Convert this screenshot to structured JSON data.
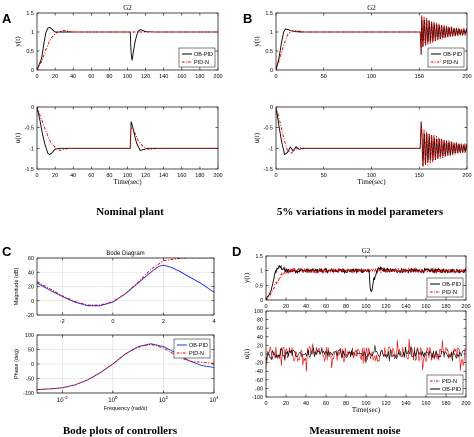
{
  "panels": {
    "A": {
      "label": "A",
      "caption": "Nominal plant"
    },
    "B": {
      "label": "B",
      "caption": "5% variations in model parameters"
    },
    "C": {
      "label": "C",
      "caption": "Bode plots of controllers"
    },
    "D": {
      "label": "D",
      "caption": "Measurement noise"
    }
  },
  "colors": {
    "ob_pid": "#000000",
    "pid_n": "#e00000",
    "ob_pid_bode": "#2233dd"
  },
  "chart_data": [
    {
      "id": "A-top",
      "type": "line",
      "title": "G2",
      "ylabel": "y(t)",
      "xlabel": "",
      "xlim": [
        0,
        200
      ],
      "ylim": [
        0,
        1.5
      ],
      "xticks": [
        0,
        20,
        40,
        60,
        80,
        100,
        120,
        140,
        160,
        180,
        200
      ],
      "yticks": [
        0,
        0.5,
        1,
        1.5
      ],
      "legend": "bottom-right",
      "series": [
        {
          "name": "OB-PID",
          "style": "solid",
          "x": [
            0,
            5,
            8,
            10,
            12,
            14,
            16,
            18,
            20,
            25,
            40,
            103,
            104,
            105,
            106,
            108,
            110,
            112,
            114,
            116,
            120,
            130,
            200
          ],
          "values": [
            0,
            0.3,
            0.75,
            1.0,
            1.1,
            1.12,
            1.09,
            1.04,
            1.0,
            1.0,
            1.0,
            1.0,
            0.45,
            0.25,
            0.4,
            0.7,
            0.9,
            1.02,
            1.06,
            1.05,
            1.01,
            1.0,
            1.0
          ]
        },
        {
          "name": "PID-N",
          "style": "dashdot",
          "x": [
            0,
            5,
            10,
            15,
            20,
            25,
            30,
            35,
            40,
            50,
            200
          ],
          "values": [
            0,
            0.22,
            0.55,
            0.82,
            0.95,
            1.02,
            1.04,
            1.02,
            1.0,
            1.0,
            1.0
          ]
        }
      ]
    },
    {
      "id": "A-bottom",
      "type": "line",
      "ylabel": "u(t)",
      "xlabel": "Time(sec)",
      "xlim": [
        0,
        200
      ],
      "ylim": [
        -1.5,
        0
      ],
      "xticks": [
        0,
        20,
        40,
        60,
        80,
        100,
        120,
        140,
        160,
        180,
        200
      ],
      "yticks": [
        -1.5,
        -1,
        -0.5,
        0
      ],
      "series": [
        {
          "name": "OB-PID",
          "style": "solid",
          "x": [
            0,
            3,
            6,
            9,
            12,
            14,
            16,
            18,
            20,
            25,
            40,
            103,
            104,
            106,
            108,
            110,
            114,
            118,
            122,
            200
          ],
          "values": [
            0,
            -0.3,
            -0.65,
            -0.92,
            -1.12,
            -1.15,
            -1.12,
            -1.07,
            -1.02,
            -1.0,
            -1.0,
            -1.0,
            -0.35,
            -0.5,
            -0.7,
            -0.87,
            -1.05,
            -1.03,
            -1.0,
            -1.0
          ]
        },
        {
          "name": "PID-N",
          "style": "dashdot",
          "x": [
            0,
            5,
            10,
            15,
            20,
            25,
            30,
            35,
            40,
            103,
            104,
            108,
            112,
            118,
            124,
            130,
            140,
            200
          ],
          "values": [
            0,
            -0.3,
            -0.6,
            -0.85,
            -0.98,
            -1.05,
            -1.03,
            -1.0,
            -1.0,
            -1.0,
            -0.5,
            -0.62,
            -0.82,
            -0.97,
            -1.03,
            -1.01,
            -1.0,
            -1.0
          ]
        }
      ]
    },
    {
      "id": "B-top",
      "type": "line",
      "title": "G2",
      "ylabel": "y(t)",
      "xlabel": "",
      "xlim": [
        0,
        200
      ],
      "ylim": [
        0,
        1.5
      ],
      "xticks": [
        0,
        50,
        100,
        150,
        200
      ],
      "yticks": [
        0,
        0.5,
        1,
        1.5
      ],
      "legend": "bottom-right",
      "osc_start": 152,
      "osc_end": 200,
      "osc_amp0": 0.45,
      "osc_decay": 0.04,
      "osc_period": 2.6,
      "series": [
        {
          "name": "OB-PID",
          "style": "solid",
          "x": [
            0,
            3,
            6,
            8,
            10,
            13,
            16,
            20,
            25,
            30,
            40,
            151,
            152,
            153,
            154
          ],
          "values": [
            0,
            0.3,
            0.75,
            1.0,
            1.08,
            1.06,
            1.03,
            1.01,
            1.0,
            1.0,
            1.0,
            1.0,
            0.4,
            0.2,
            0.5
          ]
        },
        {
          "name": "PID-N",
          "style": "dashdot",
          "x": [
            0,
            4,
            8,
            12,
            16,
            20,
            25,
            30,
            40,
            151,
            152,
            153,
            154
          ],
          "values": [
            0,
            0.3,
            0.65,
            0.92,
            1.03,
            1.04,
            1.02,
            1.0,
            1.0,
            1.0,
            0.45,
            0.25,
            0.55
          ]
        }
      ]
    },
    {
      "id": "B-bottom",
      "type": "line",
      "ylabel": "u(t)",
      "xlabel": "Time(sec)",
      "xlim": [
        0,
        200
      ],
      "ylim": [
        -1.5,
        0
      ],
      "xticks": [
        0,
        50,
        100,
        150,
        200
      ],
      "yticks": [
        -1.5,
        -1,
        -0.5,
        0
      ],
      "osc_start": 152,
      "osc_end": 200,
      "osc_amp0": 0.5,
      "osc_decay": 0.035,
      "osc_period": 2.6,
      "series": [
        {
          "name": "OB-PID",
          "style": "solid",
          "x": [
            0,
            3,
            6,
            9,
            12,
            15,
            18,
            21,
            24,
            30,
            40,
            151,
            152,
            153
          ],
          "values": [
            0,
            -0.45,
            -0.85,
            -1.15,
            -1.1,
            -0.97,
            -1.06,
            -0.96,
            -1.02,
            -1.0,
            -1.0,
            -1.0,
            -0.35,
            -0.6
          ]
        },
        {
          "name": "PID-N",
          "style": "dashdot",
          "x": [
            0,
            4,
            8,
            12,
            16,
            20,
            25,
            30,
            40,
            151,
            152,
            153
          ],
          "values": [
            0,
            -0.35,
            -0.75,
            -1.05,
            -1.12,
            -1.02,
            -0.98,
            -1.0,
            -1.0,
            -1.0,
            -0.4,
            -0.65
          ]
        }
      ]
    },
    {
      "id": "C-top",
      "type": "line",
      "title": "Bode Diagram",
      "ylabel": "Magnitude (dB)",
      "xlabel": "",
      "xscale": "log",
      "xlim": [
        -3,
        4
      ],
      "ylim": [
        -20,
        60
      ],
      "xticks": [
        -2,
        0,
        2,
        4
      ],
      "yticks": [
        -20,
        0,
        20,
        40,
        60
      ],
      "series": [
        {
          "name": "OB-PID",
          "style": "solid",
          "x": [
            -3,
            -2.5,
            -2,
            -1.5,
            -1,
            -0.5,
            0,
            0.5,
            1,
            1.5,
            1.8,
            2,
            2.3,
            2.6,
            3,
            3.5,
            4
          ],
          "values": [
            25,
            15,
            6,
            -2,
            -7,
            -7,
            -2,
            10,
            25,
            40,
            48,
            50,
            47,
            42,
            34,
            24,
            12
          ]
        },
        {
          "name": "PID-N",
          "style": "dashdot",
          "x": [
            -3,
            -2.5,
            -2,
            -1.5,
            -1,
            -0.5,
            0,
            0.5,
            1,
            1.5,
            2,
            2.5,
            3,
            4
          ],
          "values": [
            27,
            17,
            7,
            -1,
            -6,
            -6,
            -1,
            10,
            26,
            44,
            56,
            59,
            60,
            60
          ]
        }
      ]
    },
    {
      "id": "C-bottom",
      "type": "line",
      "ylabel": "Phase (deg)",
      "xlabel": "Frequency (rad/s)",
      "xscale": "log",
      "xlim": [
        -3,
        4
      ],
      "ylim": [
        -100,
        100
      ],
      "xticks": [
        -2,
        0,
        2,
        4
      ],
      "xticklabels": [
        "10^-2",
        "10^0",
        "10^2",
        "10^4"
      ],
      "yticks": [
        -100,
        -50,
        0,
        50,
        100
      ],
      "legend": "top-right",
      "series": [
        {
          "name": "OB-PID",
          "style": "solid",
          "x": [
            -3,
            -2.5,
            -2,
            -1.5,
            -1,
            -0.5,
            0,
            0.5,
            1,
            1.5,
            2,
            2.5,
            3,
            3.5,
            4
          ],
          "values": [
            -88,
            -86,
            -82,
            -72,
            -55,
            -30,
            0,
            35,
            60,
            70,
            60,
            38,
            12,
            -5,
            -12
          ]
        },
        {
          "name": "PID-N",
          "style": "dashdot",
          "x": [
            -3,
            -2.5,
            -2,
            -1.5,
            -1,
            -0.5,
            0,
            0.5,
            1,
            1.5,
            2,
            2.5,
            3,
            4
          ],
          "values": [
            -88,
            -86,
            -82,
            -72,
            -55,
            -30,
            0,
            35,
            58,
            68,
            55,
            30,
            10,
            2
          ]
        }
      ]
    },
    {
      "id": "D-top",
      "type": "line",
      "title": "G2",
      "ylabel": "y(t)",
      "xlabel": "",
      "xlim": [
        0,
        200
      ],
      "ylim": [
        0,
        1.5
      ],
      "xticks": [
        0,
        20,
        40,
        60,
        80,
        100,
        120,
        140,
        160,
        180,
        200
      ],
      "yticks": [
        0,
        0.5,
        1,
        1.5
      ],
      "legend": "bottom-right",
      "noise": 0.07,
      "series": [
        {
          "name": "OB-PID",
          "style": "solid",
          "x": [
            0,
            5,
            8,
            10,
            12,
            14,
            16,
            18,
            20,
            25,
            40,
            103,
            104,
            105,
            106,
            108,
            110,
            112,
            114,
            116,
            120,
            130,
            200
          ],
          "values": [
            0,
            0.3,
            0.75,
            1.0,
            1.1,
            1.12,
            1.09,
            1.04,
            1.0,
            1.0,
            1.0,
            1.0,
            0.45,
            0.25,
            0.4,
            0.7,
            0.9,
            1.02,
            1.06,
            1.05,
            1.01,
            1.0,
            1.0
          ]
        },
        {
          "name": "PID-N",
          "style": "dashdot",
          "x": [
            0,
            5,
            10,
            15,
            20,
            25,
            30,
            35,
            40,
            50,
            200
          ],
          "values": [
            0,
            0.22,
            0.55,
            0.82,
            0.95,
            1.02,
            1.04,
            1.02,
            1.0,
            1.0,
            1.0
          ]
        }
      ]
    },
    {
      "id": "D-bottom",
      "type": "line",
      "ylabel": "u(t)",
      "xlabel": "Time(sec)",
      "xlim": [
        0,
        200
      ],
      "ylim": [
        -100,
        100
      ],
      "xticks": [
        0,
        20,
        40,
        60,
        80,
        100,
        120,
        140,
        160,
        180,
        200
      ],
      "yticks": [
        -100,
        -80,
        -60,
        -40,
        -20,
        0,
        20,
        40,
        60,
        80,
        100
      ],
      "legend": "bottom-right",
      "noise_amp": {
        "PID-N": 32,
        "OB-PID": 16
      },
      "series": [
        {
          "name": "PID-N",
          "style": "dashdot",
          "x": [
            0,
            200
          ],
          "values": [
            0,
            0
          ]
        },
        {
          "name": "OB-PID",
          "style": "solid",
          "x": [
            0,
            200
          ],
          "values": [
            0,
            0
          ]
        }
      ]
    }
  ]
}
